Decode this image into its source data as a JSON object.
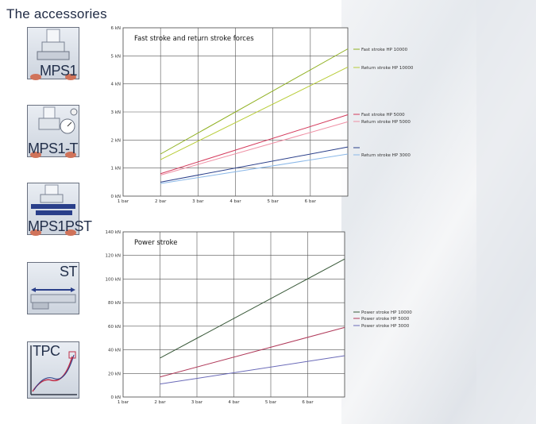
{
  "page": {
    "title": "The accessories"
  },
  "accessories": [
    {
      "label": "MPS1",
      "icon": "press-cylinder-icon"
    },
    {
      "label": "MPS1-T",
      "icon": "press-with-gauge-icon"
    },
    {
      "label": "MPS1PST",
      "icon": "press-with-stroke-bar-icon"
    },
    {
      "label": "ST",
      "icon": "stroke-transducer-icon"
    },
    {
      "label": "TPC",
      "icon": "force-curve-icon"
    }
  ],
  "chart_data": [
    {
      "type": "line",
      "title": "Fast stroke and return stroke forces",
      "x": [
        2,
        7
      ],
      "xlim": [
        1,
        7
      ],
      "x_ticks": [
        "1 bar",
        "2 bar",
        "3 bar",
        "4 bar",
        "5 bar",
        "6 bar"
      ],
      "ylim": [
        0,
        6
      ],
      "y_ticks": [
        "0 kN",
        "1 kN",
        "2 kN",
        "3 kN",
        "4 kN",
        "5 kN",
        "6 kN"
      ],
      "grid": true,
      "legend_position": "right",
      "series": [
        {
          "name": "Fast stroke HP 10000",
          "values": [
            1.5,
            5.25
          ],
          "color": "#8fb020"
        },
        {
          "name": "Return stroke HP 10000",
          "values": [
            1.3,
            4.6
          ],
          "color": "#b8cc38"
        },
        {
          "name": "Fast stroke HP 5000",
          "values": [
            0.8,
            2.9
          ],
          "color": "#d43a5c"
        },
        {
          "name": "Return stroke HP 5000",
          "values": [
            0.75,
            2.65
          ],
          "color": "#ef8fa4"
        },
        {
          "name": "",
          "values": [
            0.5,
            1.75
          ],
          "color": "#2a3f8a"
        },
        {
          "name": "Return stroke HP 3000",
          "values": [
            0.45,
            1.5
          ],
          "color": "#8ab8e8"
        }
      ]
    },
    {
      "type": "line",
      "title": "Power stroke",
      "x": [
        2,
        7
      ],
      "xlim": [
        1,
        7
      ],
      "x_ticks": [
        "1 bar",
        "2 bar",
        "3 bar",
        "4 bar",
        "5 bar",
        "6 bar"
      ],
      "ylim": [
        0,
        140
      ],
      "y_ticks": [
        "0 kN",
        "20 kN",
        "40 kN",
        "60 kN",
        "80 kN",
        "100 kN",
        "120 kN",
        "140 kN"
      ],
      "grid": true,
      "legend_position": "right",
      "series": [
        {
          "name": "Power stroke HP 10000",
          "values": [
            33,
            117
          ],
          "color": "#3a5a3a"
        },
        {
          "name": "Power stroke HP 5000",
          "values": [
            17,
            59
          ],
          "color": "#b03a5a"
        },
        {
          "name": "Power stroke HP 3000",
          "values": [
            11,
            35
          ],
          "color": "#6a6ab8"
        }
      ]
    }
  ]
}
